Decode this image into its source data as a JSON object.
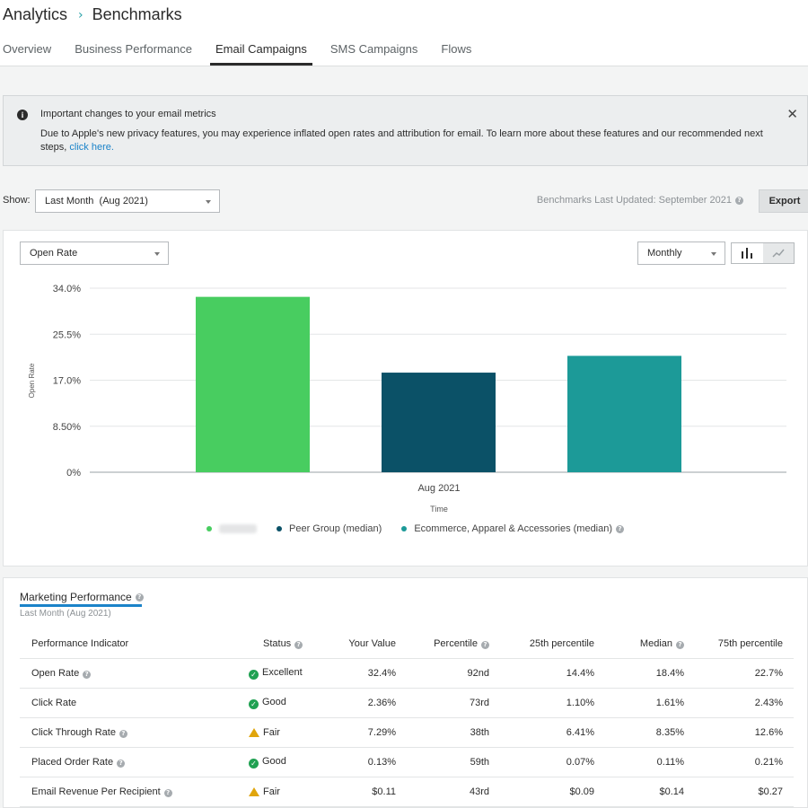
{
  "breadcrumb": {
    "parent": "Analytics",
    "current": "Benchmarks"
  },
  "tabs": [
    {
      "label": "Overview"
    },
    {
      "label": "Business Performance"
    },
    {
      "label": "Email Campaigns",
      "active": true
    },
    {
      "label": "SMS Campaigns"
    },
    {
      "label": "Flows"
    }
  ],
  "notice": {
    "title": "Important changes to your email metrics",
    "body": "Due to Apple's new privacy features, you may experience inflated open rates and attribution for email. To learn more about these features and our recommended next steps, ",
    "link": "click here."
  },
  "filters": {
    "show_label": "Show:",
    "period": "Last Month  (Aug 2021)",
    "benchmarks_updated": "Benchmarks Last Updated: September 2021",
    "export_label": "Export",
    "metric": "Open Rate",
    "granularity": "Monthly"
  },
  "chart_data": {
    "type": "bar",
    "categories": [
      "Aug 2021"
    ],
    "series": [
      {
        "name": "",
        "values": [
          32.4
        ],
        "color": "#48cd60"
      },
      {
        "name": "Peer Group (median)",
        "values": [
          18.4
        ],
        "color": "#0b5167"
      },
      {
        "name": "Ecommerce, Apparel & Accessories (median)",
        "values": [
          21.5
        ],
        "color": "#1c9a98"
      }
    ],
    "yticks": [
      "34.0%",
      "25.5%",
      "17.0%",
      "8.50%",
      "0%"
    ],
    "ylim": [
      0,
      34
    ],
    "xlabel": "Time",
    "ylabel": "Open Rate",
    "grid": true,
    "legend": "bottom"
  },
  "marketing": {
    "title": "Marketing Performance",
    "subtitle": "Last Month (Aug 2021)",
    "columns": [
      "Performance Indicator",
      "Status",
      "Your Value",
      "Percentile",
      "25th percentile",
      "Median",
      "75th percentile"
    ],
    "rows": [
      {
        "indicator": "Open Rate",
        "status": "Excellent",
        "status_type": "good",
        "value": "32.4%",
        "percentile": "92nd",
        "p25": "14.4%",
        "median": "18.4%",
        "p75": "22.7%"
      },
      {
        "indicator": "Click Rate",
        "status": "Good",
        "status_type": "good",
        "value": "2.36%",
        "percentile": "73rd",
        "p25": "1.10%",
        "median": "1.61%",
        "p75": "2.43%"
      },
      {
        "indicator": "Click Through Rate",
        "status": "Fair",
        "status_type": "warn",
        "value": "7.29%",
        "percentile": "38th",
        "p25": "6.41%",
        "median": "8.35%",
        "p75": "12.6%"
      },
      {
        "indicator": "Placed Order Rate",
        "status": "Good",
        "status_type": "good",
        "value": "0.13%",
        "percentile": "59th",
        "p25": "0.07%",
        "median": "0.11%",
        "p75": "0.21%"
      },
      {
        "indicator": "Email Revenue Per Recipient",
        "status": "Fair",
        "status_type": "warn",
        "value": "$0.11",
        "percentile": "43rd",
        "p25": "$0.09",
        "median": "$0.14",
        "p75": "$0.27"
      }
    ]
  }
}
